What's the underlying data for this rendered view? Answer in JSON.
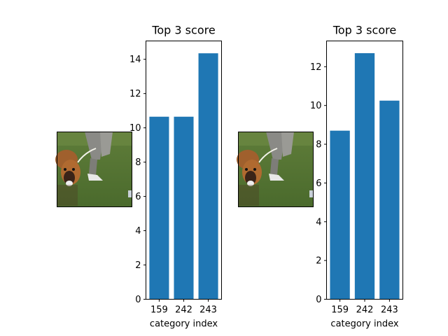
{
  "figure": {
    "bar_color": "#1f77b4",
    "thumbnail_description": "photo thumbnail"
  },
  "chart_data": [
    {
      "type": "bar",
      "title": "Top 3 score",
      "xlabel": "category index",
      "ylabel": "",
      "categories": [
        "159",
        "242",
        "243"
      ],
      "values": [
        10.65,
        10.65,
        14.35
      ],
      "ylim": [
        0,
        15.07
      ],
      "yticks": [
        0,
        2,
        4,
        6,
        8,
        10,
        12,
        14
      ],
      "grid": false,
      "legend": "none"
    },
    {
      "type": "bar",
      "title": "Top 3 score",
      "xlabel": "category index",
      "ylabel": "",
      "categories": [
        "159",
        "242",
        "243"
      ],
      "values": [
        8.7,
        12.7,
        10.25
      ],
      "ylim": [
        0,
        13.33
      ],
      "yticks": [
        0,
        2,
        4,
        6,
        8,
        10,
        12
      ],
      "grid": false,
      "legend": "none"
    }
  ]
}
